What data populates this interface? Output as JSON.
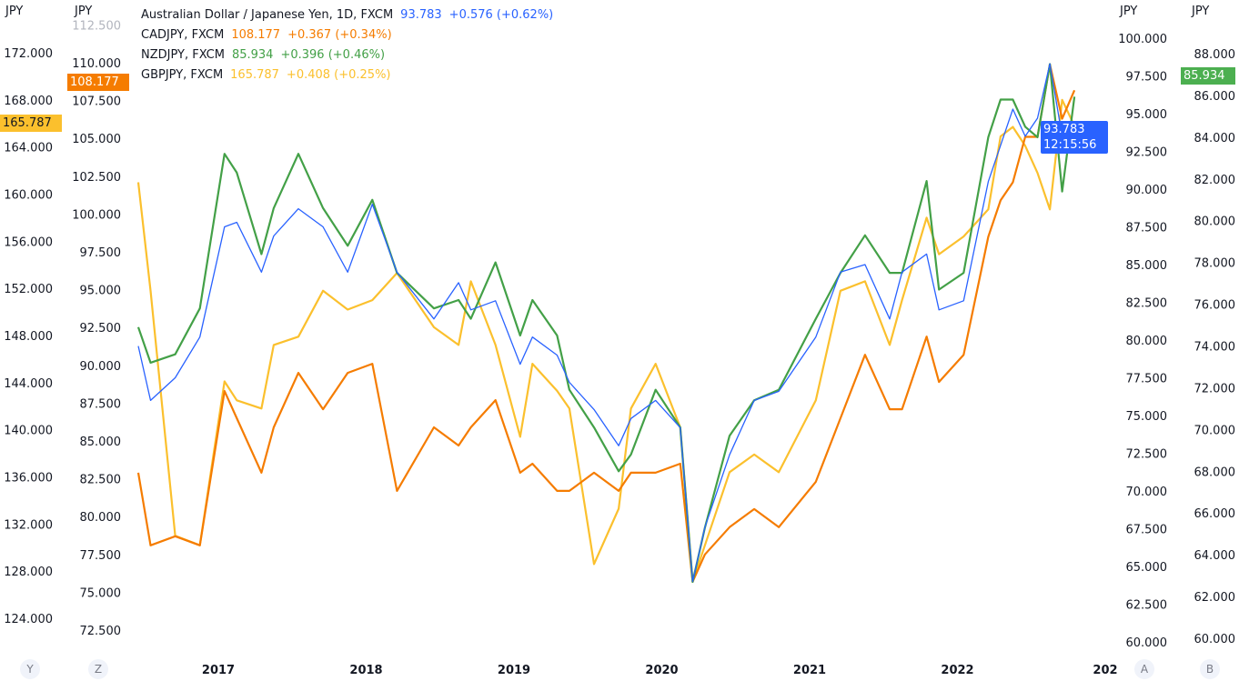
{
  "legend": [
    {
      "name": "Australian Dollar / Japanese Yen, 1D, FXCM",
      "value": "93.783",
      "change": "+0.576 (+0.62%)",
      "color": "#2962ff"
    },
    {
      "name": "CADJPY, FXCM",
      "value": "108.177",
      "change": "+0.367 (+0.34%)",
      "color": "#f57c00"
    },
    {
      "name": "NZDJPY, FXCM",
      "value": "85.934",
      "change": "+0.396 (+0.46%)",
      "color": "#43a047"
    },
    {
      "name": "GBPJPY, FXCM",
      "value": "165.787",
      "change": "+0.408 (+0.25%)",
      "color": "#fbc02d"
    }
  ],
  "scales": {
    "Y": {
      "unit": "JPY",
      "button": "Y",
      "ticks": [
        "172.000",
        "168.000",
        "164.000",
        "160.000",
        "156.000",
        "152.000",
        "148.000",
        "144.000",
        "140.000",
        "136.000",
        "132.000",
        "128.000",
        "124.000"
      ],
      "tag": "165.787"
    },
    "Z": {
      "unit": "JPY",
      "button": "Z",
      "ticks": [
        "112.500",
        "110.000",
        "107.500",
        "105.000",
        "102.500",
        "100.000",
        "97.500",
        "95.000",
        "92.500",
        "90.000",
        "87.500",
        "85.000",
        "82.500",
        "80.000",
        "77.500",
        "75.000",
        "72.500"
      ],
      "tag": "108.177"
    },
    "A": {
      "unit": "JPY",
      "button": "A",
      "ticks": [
        "100.000",
        "97.500",
        "95.000",
        "92.500",
        "90.000",
        "87.500",
        "85.000",
        "82.500",
        "80.000",
        "77.500",
        "75.000",
        "72.500",
        "70.000",
        "67.500",
        "65.000",
        "62.500",
        "60.000"
      ],
      "tag": "93.783",
      "countdown": "12:15:56"
    },
    "B": {
      "unit": "JPY",
      "button": "B",
      "ticks": [
        "88.000",
        "86.000",
        "84.000",
        "82.000",
        "80.000",
        "78.000",
        "76.000",
        "74.000",
        "72.000",
        "70.000",
        "68.000",
        "66.000",
        "64.000",
        "62.000",
        "60.000"
      ],
      "tag": "85.934"
    }
  },
  "chart_data": {
    "type": "line",
    "xaxis_ticks": [
      "2017",
      "2018",
      "2019",
      "2020",
      "2021",
      "2022",
      "202"
    ],
    "x": [
      "2016-06",
      "2016-07",
      "2016-09",
      "2016-11",
      "2017-01",
      "2017-02",
      "2017-04",
      "2017-05",
      "2017-07",
      "2017-09",
      "2017-11",
      "2018-01",
      "2018-03",
      "2018-06",
      "2018-08",
      "2018-09",
      "2018-11",
      "2019-01",
      "2019-02",
      "2019-04",
      "2019-05",
      "2019-07",
      "2019-09",
      "2019-10",
      "2019-12",
      "2020-02",
      "2020-03",
      "2020-04",
      "2020-06",
      "2020-08",
      "2020-10",
      "2021-01",
      "2021-03",
      "2021-05",
      "2021-07",
      "2021-08",
      "2021-10",
      "2021-11",
      "2022-01",
      "2022-03",
      "2022-04",
      "2022-05",
      "2022-06",
      "2022-07",
      "2022-08",
      "2022-09",
      "2022-10"
    ],
    "series": [
      {
        "name": "GBPJPY, FXCM",
        "scale": "Y",
        "color": "#fbc02d",
        "values": [
          161.0,
          151.8,
          131.0,
          130.2,
          144.1,
          142.5,
          141.8,
          147.2,
          147.9,
          151.8,
          150.2,
          151.0,
          153.3,
          148.7,
          147.2,
          152.6,
          147.2,
          139.4,
          145.6,
          143.3,
          141.8,
          128.6,
          133.3,
          141.8,
          145.6,
          140.2,
          127.1,
          130.2,
          136.4,
          137.9,
          136.4,
          142.5,
          151.8,
          152.6,
          147.2,
          151.0,
          158.0,
          154.9,
          156.4,
          158.7,
          164.9,
          165.7,
          164.1,
          161.8,
          158.7,
          168.0,
          165.787
        ]
      },
      {
        "name": "CADJPY, FXCM",
        "scale": "Z",
        "color": "#f57c00",
        "values": [
          82.9,
          78.1,
          78.7,
          78.1,
          88.3,
          86.5,
          82.9,
          85.9,
          89.5,
          87.1,
          89.5,
          90.1,
          81.7,
          85.9,
          84.7,
          85.9,
          87.7,
          82.9,
          83.5,
          81.7,
          81.7,
          82.9,
          81.7,
          82.9,
          82.9,
          83.5,
          75.7,
          77.5,
          79.3,
          80.5,
          79.3,
          82.3,
          86.5,
          90.7,
          87.1,
          87.1,
          91.9,
          88.9,
          90.7,
          98.5,
          100.9,
          102.1,
          105.1,
          105.1,
          109.9,
          106.3,
          108.177
        ]
      },
      {
        "name": "NZDJPY, FXCM",
        "scale": "B",
        "color": "#43a047",
        "values": [
          74.9,
          73.2,
          73.6,
          75.8,
          83.2,
          82.3,
          78.4,
          80.6,
          83.2,
          80.6,
          78.8,
          81.0,
          77.5,
          75.8,
          76.2,
          75.3,
          78.0,
          74.5,
          76.2,
          74.5,
          71.9,
          70.1,
          68.0,
          68.8,
          71.9,
          70.1,
          62.7,
          65.3,
          69.7,
          71.4,
          71.9,
          75.3,
          77.5,
          79.3,
          77.5,
          77.5,
          81.9,
          76.7,
          77.5,
          84.0,
          85.8,
          85.8,
          84.5,
          84.0,
          87.5,
          81.4,
          85.934
        ]
      },
      {
        "name": "Australian Dollar / Japanese Yen, 1D, FXCM",
        "scale": "A",
        "color": "#2962ff",
        "values": [
          79.6,
          76.0,
          77.5,
          80.2,
          87.5,
          87.8,
          84.5,
          86.9,
          88.7,
          87.5,
          84.5,
          89.0,
          84.5,
          81.4,
          83.8,
          82.0,
          82.6,
          78.4,
          80.2,
          79.0,
          77.2,
          75.4,
          73.0,
          74.8,
          76.0,
          74.2,
          64.0,
          67.6,
          72.4,
          76.0,
          76.6,
          80.2,
          84.5,
          85.0,
          81.4,
          84.5,
          85.7,
          82.0,
          82.6,
          90.5,
          92.9,
          95.3,
          93.5,
          94.7,
          98.3,
          93.5,
          93.783
        ]
      }
    ]
  }
}
